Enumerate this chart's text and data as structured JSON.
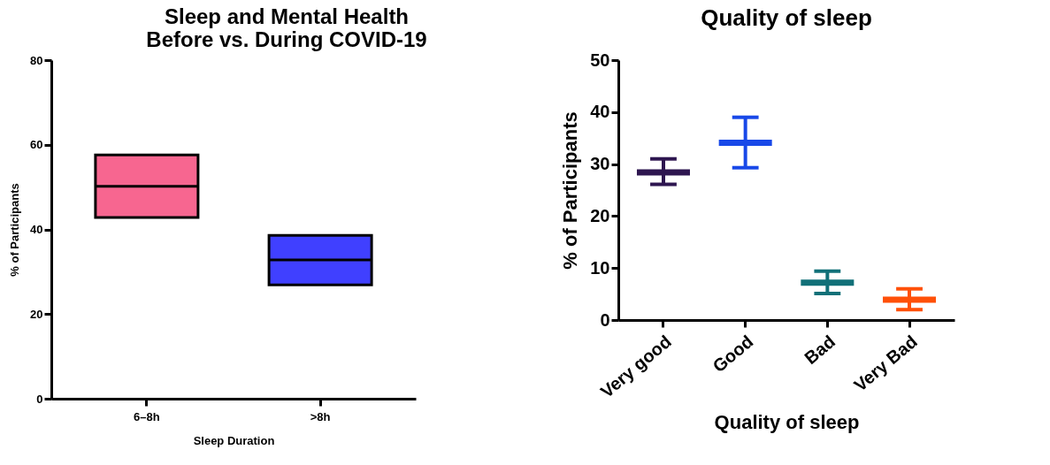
{
  "chart_data": [
    {
      "type": "box",
      "title": "Sleep and Mental Health Before vs. During COVID-19",
      "xlabel": "Sleep Duration",
      "ylabel": "% of Participants",
      "categories": [
        "6–8h",
        ">8h"
      ],
      "colors": [
        "#f76690",
        "#4040ff"
      ],
      "boxes": [
        {
          "low": 42.8,
          "q1": 42.8,
          "median": 50.2,
          "q3": 57.6,
          "high": 57.6
        },
        {
          "low": 26.9,
          "q1": 26.9,
          "median": 32.8,
          "q3": 38.6,
          "high": 38.6
        }
      ],
      "ylim": [
        0,
        80
      ],
      "yticks": [
        0,
        20,
        40,
        60,
        80
      ],
      "grid": false
    },
    {
      "type": "box",
      "title": "Quality of sleep",
      "xlabel": "Quality of sleep",
      "ylabel": "% of Participants",
      "categories": [
        "Very good",
        "Good",
        "Bad",
        "Very Bad"
      ],
      "colors": [
        "#2e1650",
        "#1848e8",
        "#117078",
        "#ff5008"
      ],
      "boxes": [
        {
          "low": 26.1,
          "q1": 28.4,
          "median": 28.4,
          "q3": 28.4,
          "high": 31.0
        },
        {
          "low": 29.3,
          "q1": 34.1,
          "median": 34.1,
          "q3": 34.1,
          "high": 39.0
        },
        {
          "low": 5.1,
          "q1": 7.2,
          "median": 7.2,
          "q3": 7.2,
          "high": 9.4
        },
        {
          "low": 2.0,
          "q1": 3.9,
          "median": 3.9,
          "q3": 3.9,
          "high": 6.0
        }
      ],
      "ylim": [
        0,
        50
      ],
      "yticks": [
        0,
        10,
        20,
        30,
        40,
        50
      ],
      "grid": false
    }
  ]
}
